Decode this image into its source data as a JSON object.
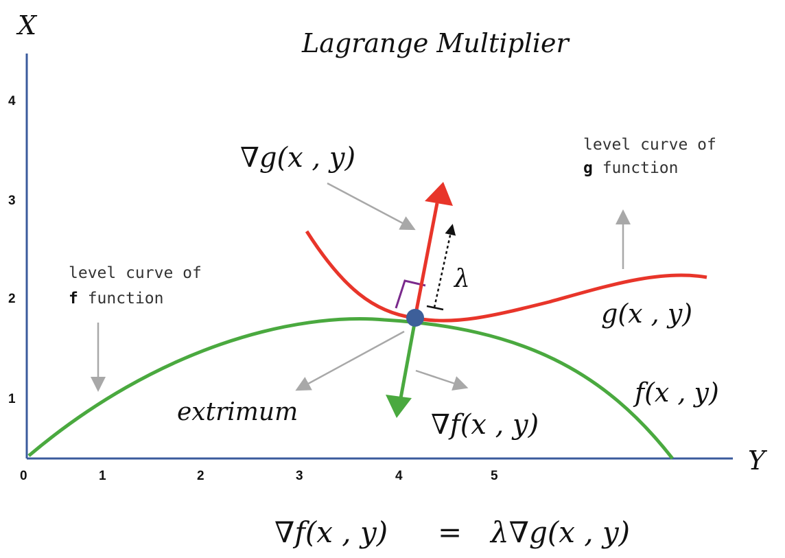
{
  "title": "Lagrange Multiplier",
  "axes": {
    "vertical_label": "X",
    "horizontal_label": "Y",
    "origin_label": "0",
    "vertical_ticks": [
      "1",
      "2",
      "3",
      "4"
    ],
    "horizontal_ticks": [
      "1",
      "2",
      "3",
      "4",
      "5"
    ]
  },
  "labels": {
    "grad_g": "∇g(x , y)",
    "grad_f": "∇f(x , y)",
    "g_curve": "g(x , y)",
    "f_curve": "f(x , y)",
    "lambda": "λ",
    "extremum": "extrimum",
    "level_curve_g_line1": "level curve of",
    "level_curve_g_bold": "g",
    "level_curve_g_rest": " function",
    "level_curve_f_line1": "level curve of",
    "level_curve_f_bold": "f",
    "level_curve_f_rest": " function"
  },
  "equation": {
    "lhs": "∇f(x , y)",
    "equals": "=",
    "rhs": "λ∇g(x , y)"
  },
  "colors": {
    "axis": "#3a5a9c",
    "g_curve": "#e8352a",
    "f_curve": "#4aa93f",
    "point": "#3d5f9a",
    "pointer": "#a8a8a8",
    "right_angle": "#7a2a8c",
    "lambda_arrow": "#111111"
  }
}
